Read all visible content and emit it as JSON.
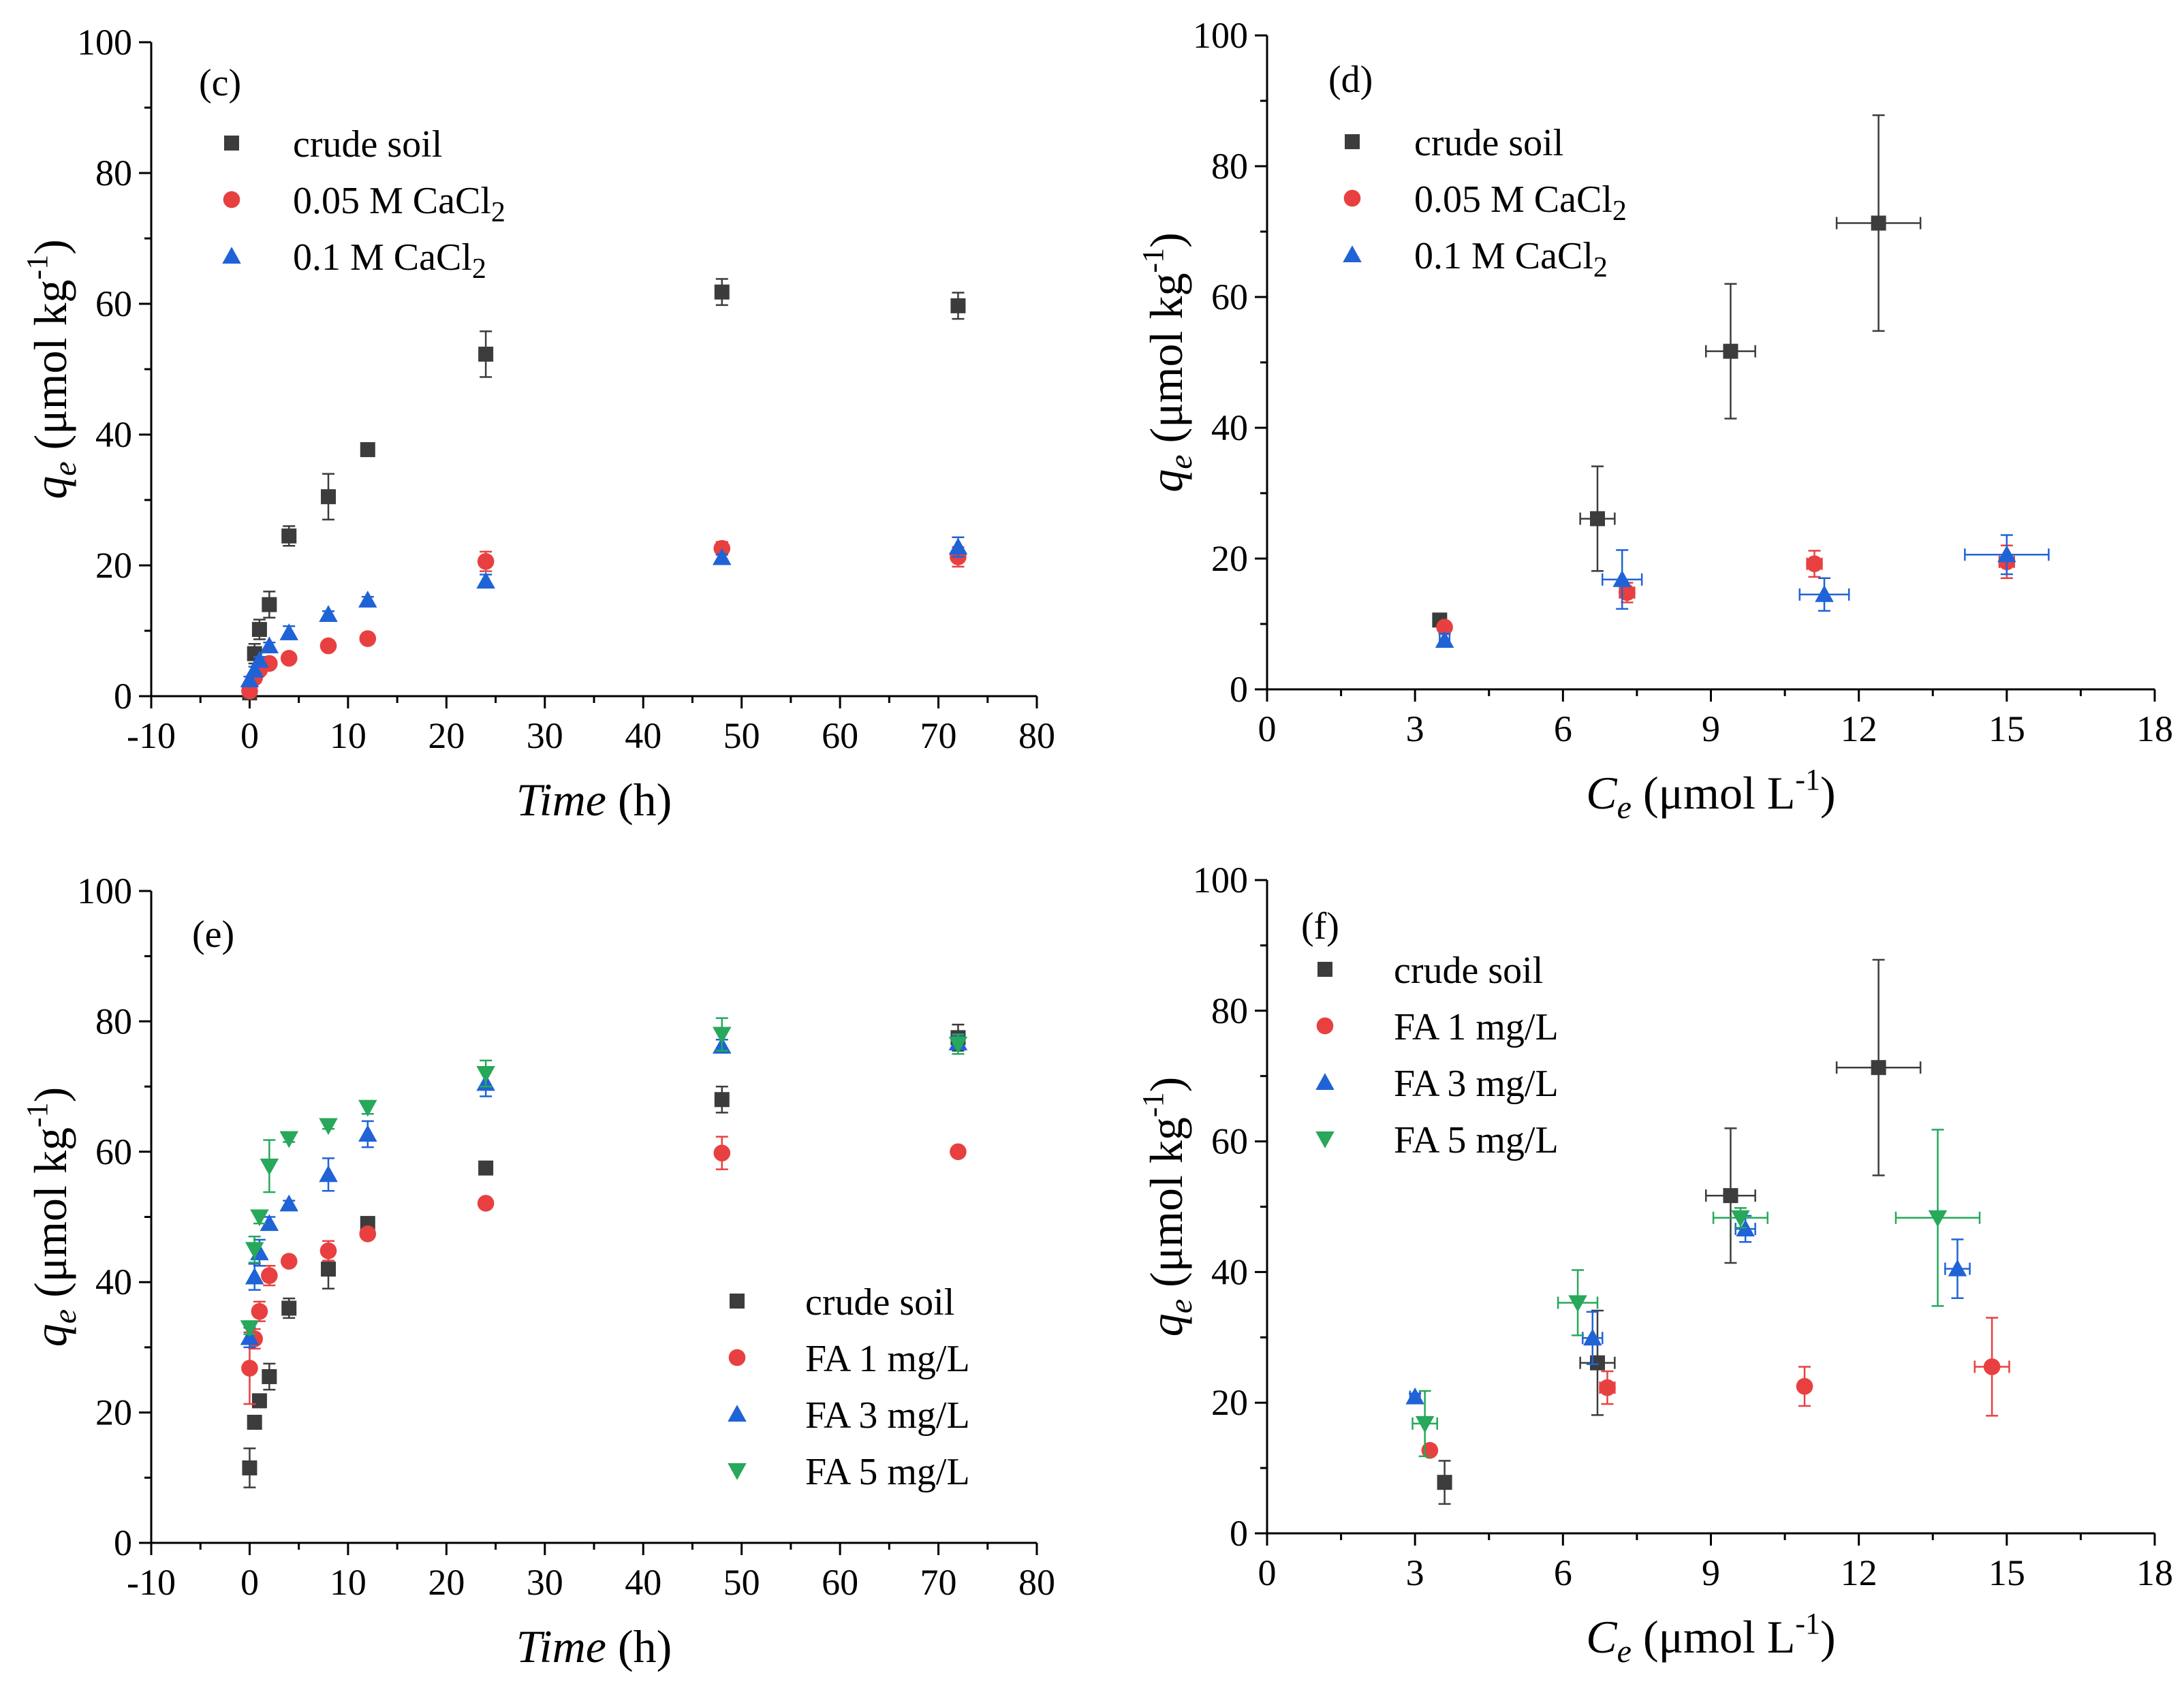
{
  "colors": {
    "crude": "#3c3c3c",
    "ca005": "#e84040",
    "ca01": "#1f63d6",
    "fa1": "#e84040",
    "fa3": "#1f63d6",
    "fa5": "#27a85a",
    "axis": "#000000"
  },
  "chart_data": [
    {
      "panel": "(c)",
      "type": "scatter",
      "xlabel": "Time",
      "xunit": "(h)",
      "ylabel": "q",
      "ysub": "e",
      "yunit_pre": " (μmol kg",
      "yunit_sup": "-1",
      "yunit_post": ")",
      "xlim": [
        -10,
        80
      ],
      "ylim": [
        0,
        100
      ],
      "xticks": [
        -10,
        0,
        10,
        20,
        30,
        40,
        50,
        60,
        70,
        80
      ],
      "yticks": [
        0,
        20,
        40,
        60,
        80,
        100
      ],
      "legend_position": "top-left",
      "series": [
        {
          "name": "crude soil",
          "marker": "square",
          "color_key": "crude",
          "x": [
            0,
            0.5,
            1,
            2,
            4,
            8,
            12,
            24,
            48,
            72
          ],
          "y": [
            0.5,
            6.5,
            10.2,
            14,
            24.5,
            30.5,
            37.7,
            52.3,
            61.8,
            59.7
          ],
          "yerr": [
            1,
            1.5,
            1.5,
            2,
            1.5,
            3.5,
            0.5,
            3.5,
            2,
            2
          ]
        },
        {
          "name": "0.05 M CaCl",
          "name_sub": "2",
          "marker": "circle",
          "color_key": "ca005",
          "x": [
            0,
            0.5,
            1,
            2,
            4,
            8,
            12,
            24,
            48,
            72
          ],
          "y": [
            0.8,
            2.8,
            4,
            5,
            5.8,
            7.7,
            8.8,
            20.6,
            22.6,
            21.3
          ],
          "yerr": [
            0.5,
            0.5,
            0.5,
            0.5,
            0.5,
            0.5,
            0.5,
            1.5,
            1,
            1.5
          ]
        },
        {
          "name": "0.1 M CaCl",
          "name_sub": "2",
          "marker": "triangle-up",
          "color_key": "ca01",
          "x": [
            0,
            0.5,
            1,
            2,
            4,
            8,
            12,
            24,
            48,
            72
          ],
          "y": [
            2.5,
            4,
            5.5,
            7.7,
            9.7,
            12.5,
            14.7,
            17.6,
            21.2,
            22.8
          ],
          "yerr": [
            0.5,
            0.5,
            0.5,
            0.5,
            1,
            0.5,
            0.5,
            1,
            0.5,
            1.5
          ]
        }
      ]
    },
    {
      "panel": "(d)",
      "type": "scatter",
      "xlabel": "C",
      "xsub": "e",
      "xunit_pre": " (μmol L",
      "xunit_sup": "-1",
      "xunit_post": ")",
      "ylabel": "q",
      "ysub": "e",
      "yunit_pre": " (μmol kg",
      "yunit_sup": "-1",
      "yunit_post": ")",
      "xlim": [
        0,
        18
      ],
      "ylim": [
        0,
        100
      ],
      "xticks": [
        0,
        3,
        6,
        9,
        12,
        15,
        18
      ],
      "yticks": [
        0,
        20,
        40,
        60,
        80,
        100
      ],
      "legend_position": "top-left",
      "series": [
        {
          "name": "crude soil",
          "marker": "square",
          "color_key": "crude",
          "x": [
            3.5,
            6.7,
            9.4,
            12.4
          ],
          "y": [
            10.6,
            26.1,
            51.7,
            71.3
          ],
          "xerr": [
            0.1,
            0.35,
            0.5,
            0.85
          ],
          "yerr": [
            0.5,
            8,
            10.3,
            16.5
          ]
        },
        {
          "name": "0.05 M CaCl",
          "name_sub": "2",
          "marker": "circle",
          "color_key": "ca005",
          "x": [
            3.6,
            7.3,
            11.1,
            15
          ],
          "y": [
            9.5,
            14.8,
            19.2,
            19.5
          ],
          "xerr": [
            0.1,
            0.15,
            0.15,
            0.15
          ],
          "yerr": [
            0.5,
            1.5,
            2,
            2.5
          ]
        },
        {
          "name": "0.1 M CaCl",
          "name_sub": "2",
          "marker": "triangle-up",
          "color_key": "ca01",
          "x": [
            3.6,
            7.2,
            11.3,
            15
          ],
          "y": [
            7.5,
            16.8,
            14.5,
            20.6
          ],
          "xerr": [
            0.1,
            0.4,
            0.5,
            0.85
          ],
          "yerr": [
            1,
            4.5,
            2.5,
            3
          ]
        }
      ]
    },
    {
      "panel": "(e)",
      "type": "scatter",
      "xlabel": "Time",
      "xunit": "(h)",
      "ylabel": "q",
      "ysub": "e",
      "yunit_pre": " (μmol kg",
      "yunit_sup": "-1",
      "yunit_post": ")",
      "xlim": [
        -10,
        80
      ],
      "ylim": [
        0,
        100
      ],
      "xticks": [
        -10,
        0,
        10,
        20,
        30,
        40,
        50,
        60,
        70,
        80
      ],
      "yticks": [
        0,
        20,
        40,
        60,
        80,
        100
      ],
      "legend_position": "bottom-right",
      "series": [
        {
          "name": "crude soil",
          "marker": "square",
          "color_key": "crude",
          "x": [
            0,
            0.5,
            1,
            2,
            4,
            8,
            12,
            24,
            48,
            72
          ],
          "y": [
            11.5,
            18.5,
            21.8,
            25.5,
            36,
            42,
            49,
            57.5,
            68,
            77.5
          ],
          "yerr": [
            3,
            1,
            1,
            2,
            1.5,
            3,
            0.5,
            0.5,
            2,
            2
          ]
        },
        {
          "name": "FA 1 mg/L",
          "marker": "circle",
          "color_key": "fa1",
          "x": [
            0,
            0.5,
            1,
            2,
            4,
            8,
            12,
            24,
            48,
            72
          ],
          "y": [
            26.8,
            31.3,
            35.5,
            41,
            43.2,
            44.8,
            47.4,
            52.1,
            59.8,
            60
          ],
          "yerr": [
            5.5,
            1.5,
            1.5,
            1.5,
            0.5,
            1.5,
            0.5,
            0.5,
            2.5,
            0.5
          ]
        },
        {
          "name": "FA 3 mg/L",
          "marker": "triangle-up",
          "color_key": "fa3",
          "x": [
            0,
            0.5,
            1,
            2,
            4,
            8,
            12,
            24,
            48,
            72
          ],
          "y": [
            31.5,
            40.8,
            44.5,
            49,
            52,
            56.5,
            62.7,
            70.5,
            76.2,
            76.7
          ],
          "yerr": [
            1.5,
            2,
            2,
            1,
            0.5,
            2.5,
            2,
            2,
            1,
            1
          ]
        },
        {
          "name": "FA 5 mg/L",
          "marker": "triangle-down",
          "color_key": "fa5",
          "x": [
            0,
            0.5,
            1,
            2,
            4,
            8,
            12,
            24,
            48,
            72
          ],
          "y": [
            33,
            45,
            50,
            57.8,
            62,
            64,
            66.8,
            72,
            78,
            76.5
          ],
          "yerr": [
            1,
            2,
            1,
            4,
            0.5,
            0.5,
            1,
            2,
            2.5,
            1.5
          ]
        }
      ]
    },
    {
      "panel": "(f)",
      "type": "scatter",
      "xlabel": "C",
      "xsub": "e",
      "xunit_pre": "  (μmol L",
      "xunit_sup": "-1",
      "xunit_post": ")",
      "ylabel": "q",
      "ysub": "e",
      "yunit_pre": " (μmol kg",
      "yunit_sup": "-1",
      "yunit_post": ")",
      "xlim": [
        0,
        18
      ],
      "ylim": [
        0,
        100
      ],
      "xticks": [
        0,
        3,
        6,
        9,
        12,
        15,
        18
      ],
      "yticks": [
        0,
        20,
        40,
        60,
        80,
        100
      ],
      "legend_position": "top-left",
      "series": [
        {
          "name": "crude soil",
          "marker": "square",
          "color_key": "crude",
          "x": [
            3.6,
            6.7,
            9.4,
            12.4
          ],
          "y": [
            7.8,
            26.1,
            51.7,
            71.3
          ],
          "xerr": [
            0.1,
            0.35,
            0.5,
            0.85
          ],
          "yerr": [
            3.3,
            8,
            10.3,
            16.5
          ]
        },
        {
          "name": "FA 1 mg/L",
          "marker": "circle",
          "color_key": "fa1",
          "x": [
            3.3,
            6.9,
            10.9,
            14.7
          ],
          "y": [
            12.7,
            22.3,
            22.5,
            25.5
          ],
          "xerr": [
            0.1,
            0.15,
            0.1,
            0.35
          ],
          "yerr": [
            0.5,
            2.5,
            3,
            7.5
          ]
        },
        {
          "name": "FA 3 mg/L",
          "marker": "triangle-up",
          "color_key": "fa3",
          "x": [
            3,
            6.6,
            9.7,
            14
          ],
          "y": [
            20.9,
            29.9,
            46.6,
            40.5
          ],
          "xerr": [
            0.1,
            0.2,
            0.2,
            0.25
          ],
          "yerr": [
            0.5,
            4,
            2,
            4.5
          ]
        },
        {
          "name": "FA 5 mg/L",
          "marker": "triangle-down",
          "color_key": "fa5",
          "x": [
            3.2,
            6.3,
            9.6,
            13.6
          ],
          "y": [
            16.8,
            35.3,
            48.3,
            48.3
          ],
          "xerr": [
            0.25,
            0.4,
            0.55,
            0.85
          ],
          "yerr": [
            5,
            5,
            1.5,
            13.5
          ]
        }
      ]
    }
  ]
}
